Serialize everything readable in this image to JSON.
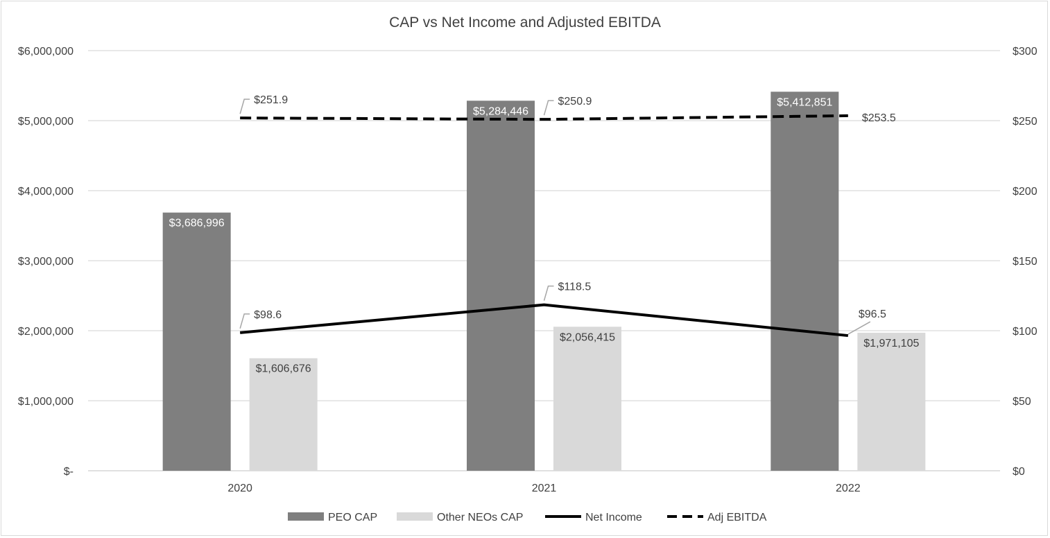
{
  "chart_data": {
    "type": "bar",
    "title": "CAP vs Net Income and Adjusted EBITDA",
    "categories": [
      "2020",
      "2021",
      "2022"
    ],
    "y_left": {
      "min": 0,
      "max": 6000000,
      "ticks": [
        {
          "value": 0,
          "label": "$-"
        },
        {
          "value": 1000000,
          "label": "$1,000,000"
        },
        {
          "value": 2000000,
          "label": "$2,000,000"
        },
        {
          "value": 3000000,
          "label": "$3,000,000"
        },
        {
          "value": 4000000,
          "label": "$4,000,000"
        },
        {
          "value": 5000000,
          "label": "$5,000,000"
        },
        {
          "value": 6000000,
          "label": "$6,000,000"
        }
      ],
      "gridlines": true
    },
    "y_right": {
      "min": 0,
      "max": 300,
      "ticks": [
        {
          "value": 0,
          "label": "$0"
        },
        {
          "value": 50,
          "label": "$50"
        },
        {
          "value": 100,
          "label": "$100"
        },
        {
          "value": 150,
          "label": "$150"
        },
        {
          "value": 200,
          "label": "$200"
        },
        {
          "value": 250,
          "label": "$250"
        },
        {
          "value": 300,
          "label": "$300"
        }
      ]
    },
    "bar_series": [
      {
        "name": "PEO CAP",
        "color": "#7f7f7f",
        "label_color": "#ffffff",
        "axis": "left",
        "values": [
          3686996,
          5284446,
          5412851
        ],
        "labels": [
          "$3,686,996",
          "$5,284,446",
          "$5,412,851"
        ]
      },
      {
        "name": "Other NEOs CAP",
        "color": "#d9d9d9",
        "label_color": "#404040",
        "axis": "left",
        "values": [
          1606676,
          2056415,
          1971105
        ],
        "labels": [
          "$1,606,676",
          "$2,056,415",
          "$1,971,105"
        ]
      }
    ],
    "line_series": [
      {
        "name": "Net Income",
        "type": "line",
        "style": "solid",
        "color": "#000000",
        "axis": "right",
        "values": [
          98.6,
          118.5,
          96.5
        ],
        "labels": [
          "$98.6",
          "$118.5",
          "$96.5"
        ]
      },
      {
        "name": "Adj EBITDA",
        "type": "line",
        "style": "dashed",
        "color": "#000000",
        "axis": "right",
        "values": [
          251.9,
          250.9,
          253.5
        ],
        "labels": [
          "$251.9",
          "$250.9",
          "$253.5"
        ]
      }
    ],
    "legend": {
      "placement": "bottom",
      "items": [
        "PEO CAP",
        "Other NEOs CAP",
        "Net Income",
        "Adj EBITDA"
      ]
    }
  }
}
